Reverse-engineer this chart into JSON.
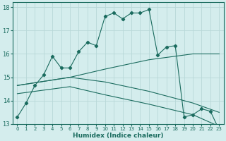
{
  "xlabel": "Humidex (Indice chaleur)",
  "bg_color": "#d4eded",
  "grid_color": "#b8d8d8",
  "line_color": "#1a6b5e",
  "xlim": [
    -0.5,
    23.5
  ],
  "ylim": [
    13,
    18.2
  ],
  "yticks": [
    13,
    14,
    15,
    16,
    17,
    18
  ],
  "xticks": [
    0,
    1,
    2,
    3,
    4,
    5,
    6,
    7,
    8,
    9,
    10,
    11,
    12,
    13,
    14,
    15,
    16,
    17,
    18,
    19,
    20,
    21,
    22,
    23
  ],
  "series1": {
    "points": [
      [
        0,
        13.3
      ],
      [
        1,
        13.9
      ],
      [
        2,
        14.65
      ],
      [
        3,
        15.1
      ],
      [
        4,
        15.9
      ],
      [
        5,
        15.4
      ],
      [
        6,
        15.4
      ],
      [
        7,
        16.1
      ],
      [
        8,
        16.5
      ],
      [
        9,
        16.35
      ],
      [
        10,
        17.6
      ],
      [
        11,
        17.75
      ],
      [
        12,
        17.5
      ],
      [
        13,
        17.75
      ],
      [
        14,
        17.75
      ],
      [
        15,
        17.9
      ],
      [
        16,
        15.95
      ],
      [
        17,
        16.3
      ],
      [
        18,
        16.35
      ],
      [
        19,
        13.3
      ],
      [
        20,
        13.4
      ],
      [
        21,
        13.65
      ],
      [
        22,
        13.55
      ],
      [
        23,
        12.75
      ]
    ]
  },
  "series2": {
    "points": [
      [
        0,
        14.65
      ],
      [
        6,
        15.0
      ],
      [
        10,
        15.35
      ],
      [
        15,
        15.75
      ],
      [
        20,
        16.0
      ],
      [
        23,
        16.0
      ]
    ]
  },
  "series3": {
    "points": [
      [
        0,
        14.65
      ],
      [
        6,
        15.0
      ],
      [
        10,
        14.8
      ],
      [
        15,
        14.4
      ],
      [
        20,
        13.9
      ],
      [
        23,
        13.5
      ]
    ]
  },
  "series4": {
    "points": [
      [
        0,
        14.3
      ],
      [
        6,
        14.6
      ],
      [
        10,
        14.25
      ],
      [
        15,
        13.85
      ],
      [
        20,
        13.4
      ],
      [
        23,
        12.9
      ]
    ]
  }
}
